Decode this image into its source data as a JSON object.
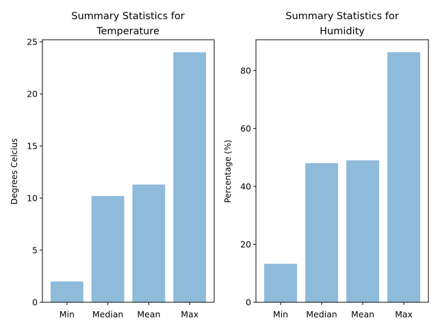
{
  "chart_data": [
    {
      "type": "bar",
      "title": [
        "Summary Statistics for",
        "Temperature"
      ],
      "xlabel": "",
      "ylabel": "Degrees Celcius",
      "categories": [
        "Min",
        "Median",
        "Mean",
        "Max"
      ],
      "values": [
        2.0,
        10.2,
        11.3,
        24.0
      ],
      "ylim": [
        0,
        25.2
      ],
      "yticks": [
        0,
        5,
        10,
        15,
        20,
        25
      ],
      "bar_color": "#8fbbdb",
      "grid": false
    },
    {
      "type": "bar",
      "title": [
        "Summary Statistics for",
        "Humidity"
      ],
      "xlabel": "",
      "ylabel": "Percentage (%)",
      "categories": [
        "Min",
        "Median",
        "Mean",
        "Max"
      ],
      "values": [
        13.3,
        48.0,
        49.0,
        86.3
      ],
      "ylim": [
        0,
        90.6
      ],
      "yticks": [
        0,
        20,
        40,
        60,
        80
      ],
      "bar_color": "#8fbbdb",
      "grid": false
    }
  ]
}
